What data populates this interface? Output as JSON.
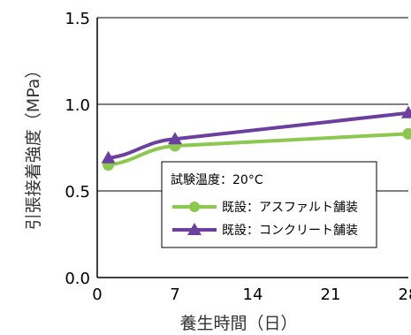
{
  "chart_data": {
    "type": "line",
    "xlabel": "養生時間（日）",
    "ylabel": "引張接着強度（MPa）",
    "xlim": [
      0,
      28
    ],
    "ylim": [
      0.0,
      1.5
    ],
    "x_ticks": [
      "0",
      "7",
      "14",
      "21",
      "28"
    ],
    "y_ticks": [
      "0.0",
      "0.5",
      "1.0",
      "1.5"
    ],
    "grid": "horizontal",
    "legend": {
      "title": "試験温度：20°C",
      "position": "center-right"
    },
    "series": [
      {
        "name": "既設：アスファルト舗装",
        "color": "#8cc850",
        "marker": "circle",
        "x": [
          1,
          7,
          28
        ],
        "y": [
          0.65,
          0.76,
          0.83
        ]
      },
      {
        "name": "既設：コンクリート舗装",
        "color": "#6b3fa0",
        "marker": "triangle",
        "x": [
          1,
          7,
          28
        ],
        "y": [
          0.69,
          0.8,
          0.95
        ]
      }
    ]
  }
}
